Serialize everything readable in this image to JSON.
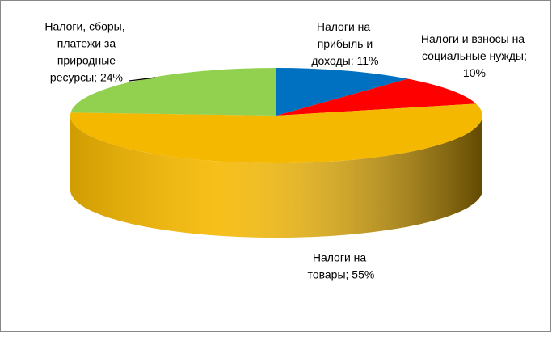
{
  "chart_data": {
    "type": "pie3d",
    "values": [
      11,
      10,
      55,
      24
    ],
    "value_labels": [
      "Налоги на прибыль и доходы; 11%",
      "Налоги и взносы на социальные нужды; 10%",
      "Налоги на товары; 55%",
      "Налоги, сборы, платежи за природные ресурсы; 24%"
    ],
    "colors": [
      "#0070c0",
      "#ff0000",
      "#f5b800",
      "#92d050"
    ]
  }
}
